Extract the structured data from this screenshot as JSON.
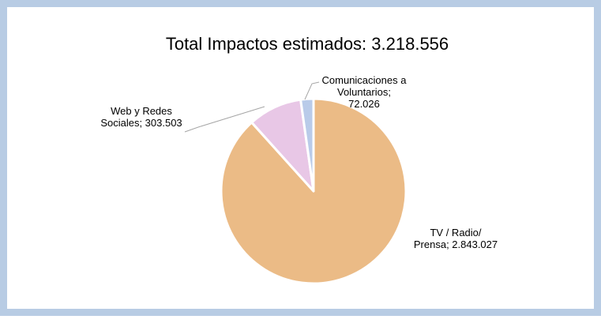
{
  "chart_data": {
    "type": "pie",
    "title": "Total Impactos estimados: 3.218.556",
    "slices": [
      {
        "label_lines": [
          "TV / Radio/",
          "Prensa; 2.843.027"
        ],
        "category": "TV / Radio/ Prensa",
        "value": 2843027,
        "color": "#ebbb86"
      },
      {
        "label_lines": [
          "Web y Redes",
          "Sociales; 303.503"
        ],
        "category": "Web y Redes Sociales",
        "value": 303503,
        "color": "#e8c7e6"
      },
      {
        "label_lines": [
          "Comunicaciones a",
          "Voluntarios;",
          "72.026"
        ],
        "category": "Comunicaciones a Voluntarios",
        "value": 72026,
        "color": "#b9cbe9"
      }
    ],
    "legend": "none",
    "start_angle": "12 o'clock",
    "direction": "clockwise"
  }
}
